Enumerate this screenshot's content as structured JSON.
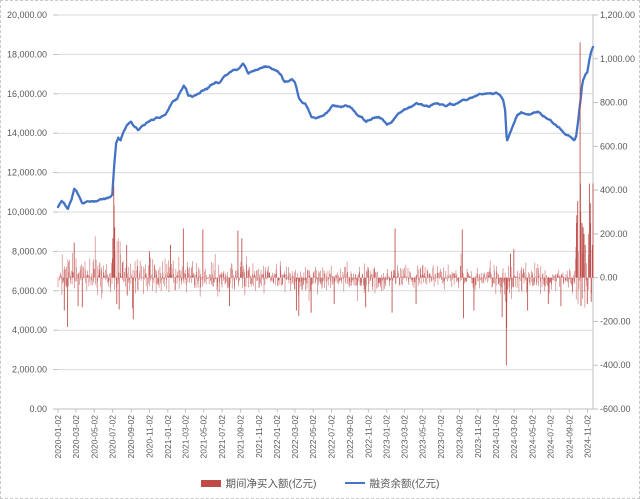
{
  "chart_data": {
    "type": "combo",
    "title": "",
    "seed": 11,
    "series": [
      {
        "name": "期间净买入额(亿元)",
        "type": "bar",
        "axis": "right",
        "color": "#BE4B48"
      },
      {
        "name": "融资余额(亿元)",
        "type": "line",
        "axis": "left",
        "color": "#4472C4"
      }
    ],
    "left_axis": {
      "min": 0,
      "max": 20000,
      "step": 2000,
      "labels": [
        "20,000.00",
        "18,000.00",
        "16,000.00",
        "14,000.00",
        "12,000.00",
        "10,000.00",
        "8,000.00",
        "6,000.00",
        "4,000.00",
        "2,000.00",
        "0.00"
      ]
    },
    "right_axis": {
      "min": -600,
      "max": 1200,
      "step": 200,
      "labels": [
        "1,200.00",
        "1,000.00",
        "800.00",
        "600.00",
        "400.00",
        "200.00",
        "0.00",
        "-200.00",
        "-400.00",
        "-600.00"
      ]
    },
    "x_axis": {
      "start": "2020-01-02",
      "end": "2024-11-20",
      "labels": [
        "2020-01-02",
        "2020-03-02",
        "2020-05-02",
        "2020-07-02",
        "2020-09-02",
        "2020-11-02",
        "2021-01-02",
        "2021-03-02",
        "2021-05-02",
        "2021-07-02",
        "2021-09-02",
        "2021-11-02",
        "2022-01-02",
        "2022-03-02",
        "2022-05-02",
        "2022-07-02",
        "2022-09-02",
        "2022-11-02",
        "2023-01-02",
        "2023-03-02",
        "2023-05-02",
        "2023-07-02",
        "2023-09-02",
        "2023-11-02",
        "2024-01-02",
        "2024-03-02",
        "2024-05-02",
        "2024-07-02",
        "2024-09-02",
        "2024-11-02"
      ]
    },
    "grid": "horizontal-only",
    "legend_position": "bottom-center",
    "line_wiggle": 40,
    "line_keypoints": [
      [
        "2020-01-02",
        10250
      ],
      [
        "2020-01-14",
        10560
      ],
      [
        "2020-01-23",
        10420
      ],
      [
        "2020-02-04",
        10170
      ],
      [
        "2020-02-17",
        10680
      ],
      [
        "2020-02-25",
        11180
      ],
      [
        "2020-03-05",
        11020
      ],
      [
        "2020-03-13",
        10780
      ],
      [
        "2020-03-24",
        10430
      ],
      [
        "2020-04-10",
        10560
      ],
      [
        "2020-04-28",
        10520
      ],
      [
        "2020-05-20",
        10620
      ],
      [
        "2020-06-09",
        10660
      ],
      [
        "2020-06-24",
        10760
      ],
      [
        "2020-07-01",
        10900
      ],
      [
        "2020-07-08",
        12500
      ],
      [
        "2020-07-14",
        13500
      ],
      [
        "2020-07-21",
        13780
      ],
      [
        "2020-07-29",
        13620
      ],
      [
        "2020-08-06",
        14020
      ],
      [
        "2020-08-18",
        14420
      ],
      [
        "2020-09-01",
        14600
      ],
      [
        "2020-09-11",
        14380
      ],
      [
        "2020-09-25",
        14180
      ],
      [
        "2020-10-14",
        14420
      ],
      [
        "2020-10-28",
        14560
      ],
      [
        "2020-11-11",
        14660
      ],
      [
        "2020-11-25",
        14800
      ],
      [
        "2020-12-09",
        14820
      ],
      [
        "2020-12-24",
        14930
      ],
      [
        "2021-01-08",
        15350
      ],
      [
        "2021-01-21",
        15650
      ],
      [
        "2021-02-02",
        15720
      ],
      [
        "2021-02-10",
        16000
      ],
      [
        "2021-02-24",
        16400
      ],
      [
        "2021-03-04",
        16280
      ],
      [
        "2021-03-11",
        15920
      ],
      [
        "2021-03-25",
        15840
      ],
      [
        "2021-04-14",
        16030
      ],
      [
        "2021-04-28",
        16180
      ],
      [
        "2021-05-12",
        16240
      ],
      [
        "2021-05-26",
        16480
      ],
      [
        "2021-06-10",
        16620
      ],
      [
        "2021-06-25",
        16580
      ],
      [
        "2021-07-09",
        16880
      ],
      [
        "2021-07-23",
        17020
      ],
      [
        "2021-08-04",
        17180
      ],
      [
        "2021-08-18",
        17230
      ],
      [
        "2021-09-02",
        17380
      ],
      [
        "2021-09-10",
        17560
      ],
      [
        "2021-09-17",
        17420
      ],
      [
        "2021-09-28",
        17080
      ],
      [
        "2021-10-12",
        17140
      ],
      [
        "2021-10-26",
        17240
      ],
      [
        "2021-11-09",
        17300
      ],
      [
        "2021-11-23",
        17390
      ],
      [
        "2021-12-07",
        17340
      ],
      [
        "2021-12-20",
        17240
      ],
      [
        "2022-01-04",
        17160
      ],
      [
        "2022-01-17",
        16940
      ],
      [
        "2022-01-27",
        16600
      ],
      [
        "2022-02-10",
        16680
      ],
      [
        "2022-02-21",
        16740
      ],
      [
        "2022-03-02",
        16580
      ],
      [
        "2022-03-09",
        16200
      ],
      [
        "2022-03-16",
        15760
      ],
      [
        "2022-03-24",
        15620
      ],
      [
        "2022-04-06",
        15500
      ],
      [
        "2022-04-15",
        15260
      ],
      [
        "2022-04-26",
        14820
      ],
      [
        "2022-05-10",
        14760
      ],
      [
        "2022-05-24",
        14820
      ],
      [
        "2022-06-08",
        14960
      ],
      [
        "2022-06-22",
        15140
      ],
      [
        "2022-07-05",
        15420
      ],
      [
        "2022-07-19",
        15380
      ],
      [
        "2022-08-02",
        15300
      ],
      [
        "2022-08-16",
        15420
      ],
      [
        "2022-08-30",
        15340
      ],
      [
        "2022-09-14",
        15140
      ],
      [
        "2022-09-28",
        14880
      ],
      [
        "2022-10-12",
        14800
      ],
      [
        "2022-10-25",
        14580
      ],
      [
        "2022-11-08",
        14700
      ],
      [
        "2022-11-22",
        14760
      ],
      [
        "2022-12-06",
        14820
      ],
      [
        "2022-12-20",
        14680
      ],
      [
        "2023-01-04",
        14470
      ],
      [
        "2023-01-17",
        14580
      ],
      [
        "2023-02-01",
        14850
      ],
      [
        "2023-02-15",
        15030
      ],
      [
        "2023-03-01",
        15220
      ],
      [
        "2023-03-15",
        15290
      ],
      [
        "2023-03-29",
        15380
      ],
      [
        "2023-04-12",
        15500
      ],
      [
        "2023-04-25",
        15440
      ],
      [
        "2023-05-10",
        15400
      ],
      [
        "2023-05-24",
        15340
      ],
      [
        "2023-06-07",
        15440
      ],
      [
        "2023-06-20",
        15500
      ],
      [
        "2023-07-04",
        15440
      ],
      [
        "2023-07-18",
        15340
      ],
      [
        "2023-08-01",
        15500
      ],
      [
        "2023-08-15",
        15420
      ],
      [
        "2023-08-28",
        15540
      ],
      [
        "2023-09-12",
        15680
      ],
      [
        "2023-09-26",
        15720
      ],
      [
        "2023-10-12",
        15780
      ],
      [
        "2023-10-24",
        15880
      ],
      [
        "2023-11-07",
        15980
      ],
      [
        "2023-11-21",
        16040
      ],
      [
        "2023-12-05",
        16040
      ],
      [
        "2023-12-19",
        15990
      ],
      [
        "2024-01-03",
        16040
      ],
      [
        "2024-01-16",
        15890
      ],
      [
        "2024-01-25",
        15680
      ],
      [
        "2024-02-01",
        15150
      ],
      [
        "2024-02-06",
        13800
      ],
      [
        "2024-02-08",
        13640
      ],
      [
        "2024-02-20",
        14120
      ],
      [
        "2024-02-28",
        14460
      ],
      [
        "2024-03-12",
        14900
      ],
      [
        "2024-03-26",
        15040
      ],
      [
        "2024-04-10",
        15000
      ],
      [
        "2024-04-24",
        14940
      ],
      [
        "2024-05-09",
        15040
      ],
      [
        "2024-05-21",
        15100
      ],
      [
        "2024-06-04",
        14940
      ],
      [
        "2024-06-18",
        14740
      ],
      [
        "2024-07-02",
        14590
      ],
      [
        "2024-07-16",
        14450
      ],
      [
        "2024-07-30",
        14290
      ],
      [
        "2024-08-13",
        14040
      ],
      [
        "2024-08-27",
        13890
      ],
      [
        "2024-09-10",
        13740
      ],
      [
        "2024-09-20",
        13640
      ],
      [
        "2024-09-25",
        13860
      ],
      [
        "2024-09-30",
        14420
      ],
      [
        "2024-10-09",
        15600
      ],
      [
        "2024-10-14",
        16350
      ],
      [
        "2024-10-18",
        16700
      ],
      [
        "2024-10-25",
        16950
      ],
      [
        "2024-11-01",
        17150
      ],
      [
        "2024-11-08",
        17750
      ],
      [
        "2024-11-14",
        18150
      ],
      [
        "2024-11-20",
        18350
      ]
    ],
    "bars": {
      "segments": [
        {
          "from": "2020-01-02",
          "to": "2020-06-30",
          "amp": 52,
          "bias": 8
        },
        {
          "from": "2020-07-01",
          "to": "2020-07-31",
          "amp": 95,
          "bias": 40
        },
        {
          "from": "2020-08-01",
          "to": "2020-12-31",
          "amp": 52,
          "bias": 6
        },
        {
          "from": "2021-01-01",
          "to": "2021-09-30",
          "amp": 50,
          "bias": 5
        },
        {
          "from": "2021-10-01",
          "to": "2021-12-31",
          "amp": 42,
          "bias": 3
        },
        {
          "from": "2022-01-01",
          "to": "2022-12-31",
          "amp": 40,
          "bias": -8
        },
        {
          "from": "2023-01-01",
          "to": "2023-12-31",
          "amp": 36,
          "bias": 1
        },
        {
          "from": "2024-01-01",
          "to": "2024-01-31",
          "amp": 46,
          "bias": -16
        },
        {
          "from": "2024-02-01",
          "to": "2024-02-29",
          "amp": 60,
          "bias": -20
        },
        {
          "from": "2024-03-01",
          "to": "2024-09-20",
          "amp": 40,
          "bias": -6
        },
        {
          "from": "2024-09-21",
          "to": "2024-11-20",
          "amp": 120,
          "bias": 55
        }
      ],
      "spikes": [
        [
          "2020-01-23",
          -150
        ],
        [
          "2020-02-03",
          -225
        ],
        [
          "2020-02-25",
          160
        ],
        [
          "2020-03-09",
          -130
        ],
        [
          "2020-03-23",
          -135
        ],
        [
          "2020-07-03",
          180
        ],
        [
          "2020-07-06",
          420
        ],
        [
          "2020-07-07",
          330
        ],
        [
          "2020-07-09",
          230
        ],
        [
          "2020-07-16",
          -120
        ],
        [
          "2020-07-24",
          -145
        ],
        [
          "2020-08-18",
          150
        ],
        [
          "2020-09-07",
          -140
        ],
        [
          "2020-09-09",
          -190
        ],
        [
          "2020-11-02",
          120
        ],
        [
          "2021-01-11",
          150
        ],
        [
          "2021-02-23",
          225
        ],
        [
          "2021-04-29",
          220
        ],
        [
          "2021-07-27",
          -130
        ],
        [
          "2021-08-24",
          215
        ],
        [
          "2021-09-06",
          180
        ],
        [
          "2022-03-07",
          -150
        ],
        [
          "2022-03-15",
          -175
        ],
        [
          "2022-04-25",
          -160
        ],
        [
          "2022-07-11",
          -120
        ],
        [
          "2022-10-24",
          -135
        ],
        [
          "2023-01-20",
          -160
        ],
        [
          "2023-01-30",
          225
        ],
        [
          "2023-04-10",
          -120
        ],
        [
          "2023-09-11",
          220
        ],
        [
          "2023-09-15",
          -185
        ],
        [
          "2023-10-20",
          -150
        ],
        [
          "2024-01-22",
          -180
        ],
        [
          "2024-02-05",
          -400
        ],
        [
          "2024-02-06",
          -230
        ],
        [
          "2024-02-19",
          110
        ],
        [
          "2024-03-01",
          130
        ],
        [
          "2024-04-16",
          -150
        ],
        [
          "2024-06-24",
          -120
        ],
        [
          "2024-08-05",
          -130
        ],
        [
          "2024-09-26",
          250
        ],
        [
          "2024-09-27",
          285
        ],
        [
          "2024-09-30",
          350
        ],
        [
          "2024-10-08",
          1075
        ],
        [
          "2024-10-09",
          430
        ],
        [
          "2024-10-10",
          300
        ],
        [
          "2024-10-11",
          -130
        ],
        [
          "2024-10-14",
          250
        ],
        [
          "2024-10-18",
          230
        ],
        [
          "2024-10-21",
          200
        ],
        [
          "2024-10-25",
          150
        ],
        [
          "2024-11-01",
          -120
        ],
        [
          "2024-11-06",
          200
        ],
        [
          "2024-11-08",
          430
        ],
        [
          "2024-11-11",
          340
        ],
        [
          "2024-11-12",
          250
        ],
        [
          "2024-11-14",
          -110
        ],
        [
          "2024-11-18",
          150
        ],
        [
          "2024-11-20",
          430
        ]
      ]
    }
  },
  "colors": {
    "gridline": "#D9D9D9",
    "axis_line": "#BFBFBF",
    "axis_text": "#595959"
  }
}
